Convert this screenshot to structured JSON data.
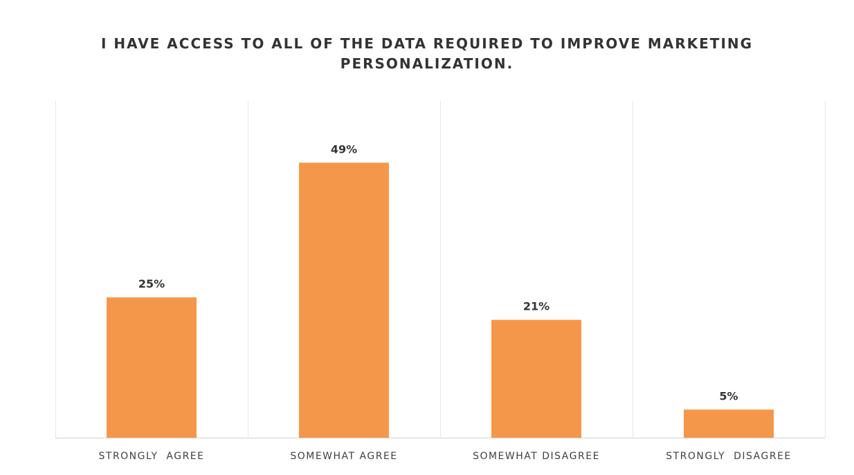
{
  "chart_data": {
    "type": "bar",
    "title_lines": [
      "I HAVE ACCESS TO ALL OF THE DATA REQUIRED TO IMPROVE MARKETING",
      "PERSONALIZATION."
    ],
    "categories": [
      "STRONGLY  AGREE",
      "SOMEWHAT AGREE",
      "SOMEWHAT DISAGREE",
      "STRONGLY  DISAGREE"
    ],
    "values": [
      25,
      49,
      21,
      5
    ],
    "data_labels": [
      "25%",
      "49%",
      "21%",
      "5%"
    ],
    "unit": "%",
    "ylim": [
      0,
      60
    ],
    "grid": "vertical category separators",
    "bar_color": "#f5974a",
    "text_color": "#333333"
  }
}
